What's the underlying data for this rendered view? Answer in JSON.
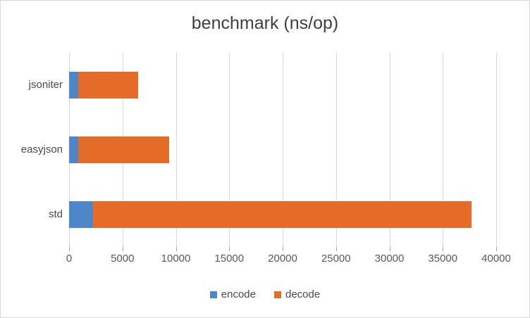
{
  "title": "benchmark (ns/op)",
  "colors": {
    "encode": "#4e86c8",
    "decode": "#e56b28",
    "grid": "#d9d9d9",
    "tick": "#a6a6a6",
    "axis_text": "#595959",
    "label_text": "#4a4a4a",
    "title_text": "#3f3f3f",
    "border": "#d7d7d7",
    "background": "#ffffff"
  },
  "chart_data": {
    "type": "bar",
    "orientation": "horizontal",
    "stacked": true,
    "title": "benchmark (ns/op)",
    "categories": [
      "jsoniter",
      "easyjson",
      "std"
    ],
    "series": [
      {
        "name": "encode",
        "color": "#4e86c8",
        "values": [
          837,
          883,
          2213
        ]
      },
      {
        "name": "decode",
        "color": "#e56b28",
        "values": [
          5623,
          8499,
          35510
        ]
      }
    ],
    "xlim": [
      0,
      40000
    ],
    "x_ticks": [
      "0",
      "5000",
      "10000",
      "15000",
      "20000",
      "25000",
      "30000",
      "35000",
      "40000"
    ],
    "grid": true,
    "legend_position": "bottom"
  },
  "legend": {
    "items": [
      {
        "label": "encode",
        "color": "#4e86c8"
      },
      {
        "label": "decode",
        "color": "#e56b28"
      }
    ]
  }
}
